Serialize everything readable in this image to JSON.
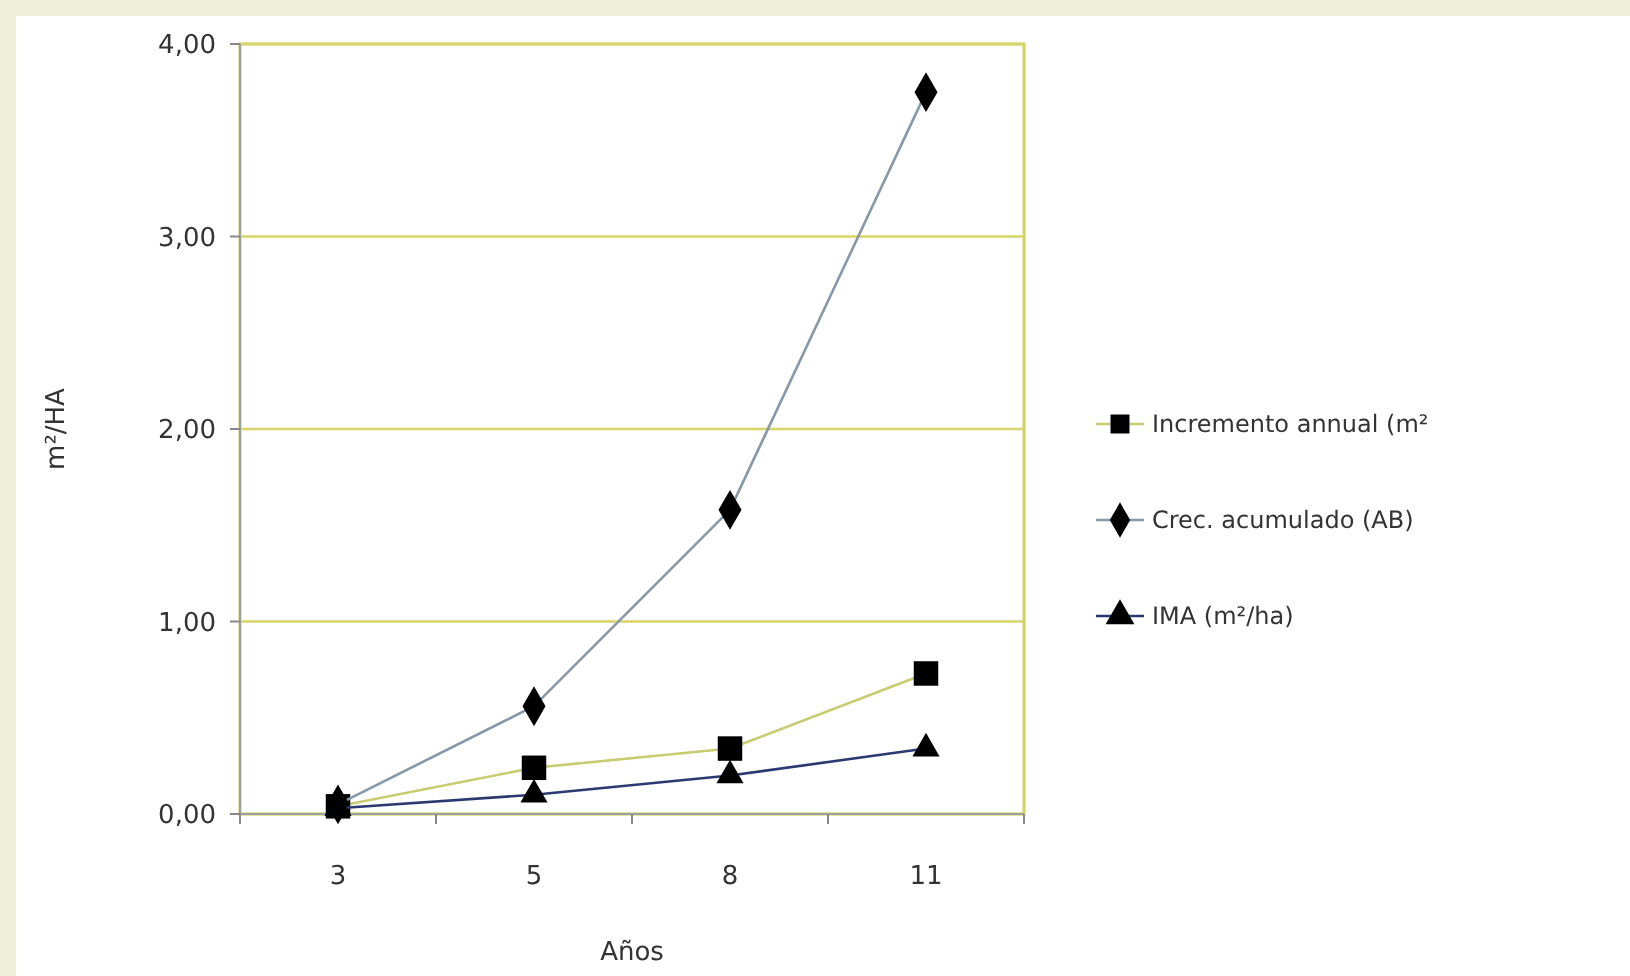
{
  "chart_data": {
    "type": "line",
    "xlabel": "Años",
    "ylabel": "m²/HA",
    "categories": [
      "3",
      "5",
      "8",
      "11"
    ],
    "ylim": [
      0,
      4
    ],
    "yticks": [
      {
        "value": 0,
        "label": "0,00"
      },
      {
        "value": 1,
        "label": "1,00"
      },
      {
        "value": 2,
        "label": "2,00"
      },
      {
        "value": 3,
        "label": "3,00"
      },
      {
        "value": 4,
        "label": "4,00"
      }
    ],
    "grid": "y",
    "legend": "right",
    "series": [
      {
        "name": "Incremento annual (m²",
        "color": "#000000",
        "marker": "square",
        "values": [
          0.04,
          0.24,
          0.34,
          0.73
        ]
      },
      {
        "name": "Crec. acumulado (AB)",
        "color": "#000000",
        "marker": "diamond",
        "values": [
          0.05,
          0.56,
          1.58,
          3.75
        ]
      },
      {
        "name": "IMA (m²/ha)",
        "color": "#000000",
        "marker": "triangle",
        "values": [
          0.03,
          0.1,
          0.2,
          0.34
        ]
      }
    ]
  }
}
